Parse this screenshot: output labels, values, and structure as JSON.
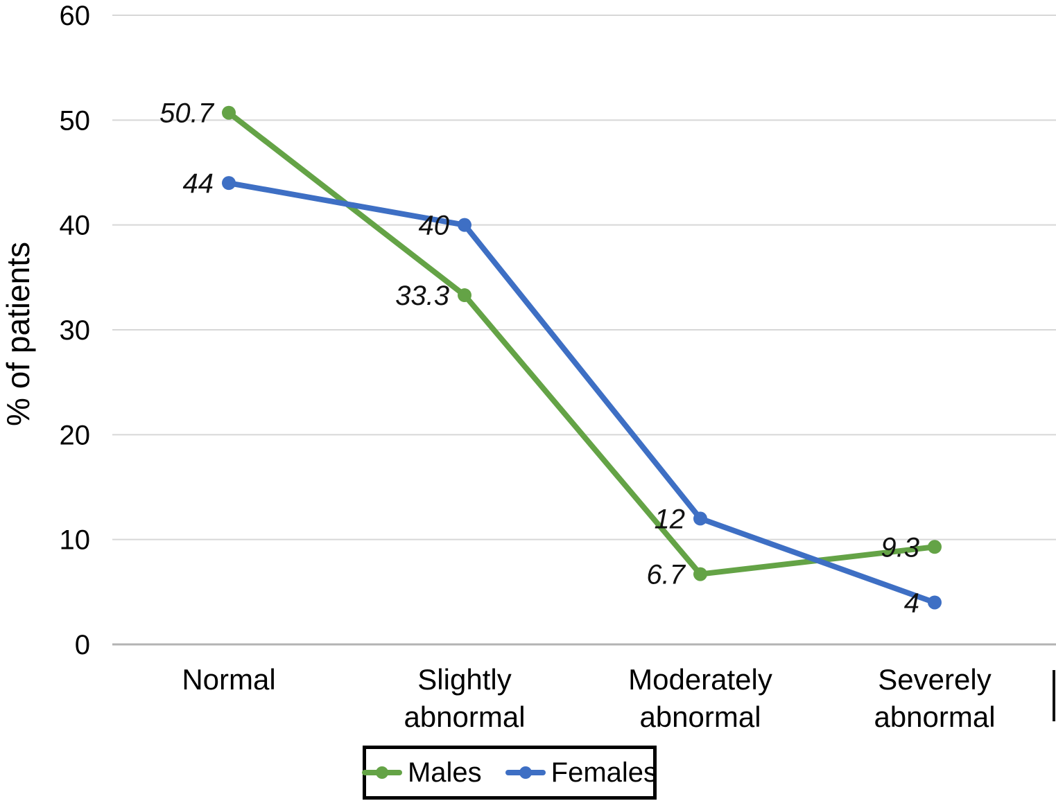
{
  "figure": {
    "ylabel": "% of patients"
  },
  "legend": {
    "items": [
      {
        "label": "Males",
        "color": "#64A346"
      },
      {
        "label": "Females",
        "color": "#3E6FC4"
      }
    ]
  },
  "chart_data": {
    "type": "line",
    "categories": [
      "Normal",
      "Slightly abnormal",
      "Moderately abnormal",
      "Severely abnormal"
    ],
    "series": [
      {
        "name": "Males",
        "color": "#64A346",
        "values": [
          50.7,
          33.3,
          6.7,
          9.3
        ],
        "point_labels": [
          "50.7",
          "33.3",
          "6.7",
          "9.3"
        ]
      },
      {
        "name": "Females",
        "color": "#3E6FC4",
        "values": [
          44,
          40,
          12,
          4
        ],
        "point_labels": [
          "44",
          "40",
          "12",
          "4"
        ]
      }
    ],
    "title": "",
    "xlabel": "",
    "ylabel": "% of patients",
    "ylim": [
      0,
      60
    ],
    "yticks": [
      0,
      10,
      20,
      30,
      40,
      50,
      60
    ],
    "grid": true,
    "gridline_color": "#d7d7d7",
    "zero_line_color": "#b3b3b3",
    "data_label_style": "italic",
    "legend_position": "bottom",
    "marker": "circle"
  }
}
